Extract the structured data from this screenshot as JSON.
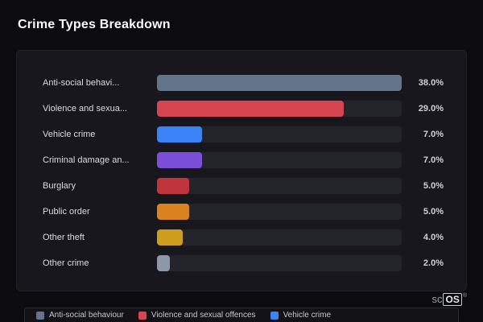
{
  "page": {
    "title": "Crime Types Breakdown"
  },
  "chart_data": {
    "type": "bar",
    "orientation": "horizontal",
    "title": "Crime Types Breakdown",
    "xlabel": "",
    "ylabel": "",
    "xlim": [
      0,
      38
    ],
    "grid": false,
    "legend_position": "bottom",
    "categories": [
      "Anti-social behavi...",
      "Violence and sexua...",
      "Vehicle crime",
      "Criminal damage an...",
      "Burglary",
      "Public order",
      "Other theft",
      "Other crime"
    ],
    "values": [
      38.0,
      29.0,
      7.0,
      7.0,
      5.0,
      5.0,
      4.0,
      2.0
    ],
    "value_labels": [
      "38.0%",
      "29.0%",
      "7.0%",
      "7.0%",
      "5.0%",
      "5.0%",
      "4.0%",
      "2.0%"
    ],
    "colors": [
      "#64748b",
      "#d64550",
      "#3b82f6",
      "#7c4fd8",
      "#c0353c",
      "#d9821f",
      "#cd9e1e",
      "#8c98a8"
    ]
  },
  "legend": {
    "items": [
      {
        "label": "Anti-social behaviour",
        "color": "#64748b"
      },
      {
        "label": "Violence and sexual offences",
        "color": "#d64550"
      },
      {
        "label": "Vehicle crime",
        "color": "#3b82f6"
      }
    ]
  },
  "branding": {
    "prefix": "sc",
    "boxed": "OS",
    "registered": "®"
  }
}
